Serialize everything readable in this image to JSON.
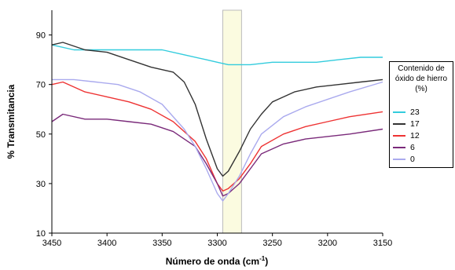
{
  "chart_data": {
    "type": "line",
    "title": "",
    "xlabel": "Número de onda (cm",
    "xlabel_sup": "-1",
    "xlabel_close": ")",
    "ylabel": "% Transmitancia",
    "xlim": [
      3450,
      3150
    ],
    "ylim": [
      10,
      100
    ],
    "x_ticks": [
      "3450",
      "3400",
      "3350",
      "3300",
      "3250",
      "3200",
      "3150"
    ],
    "y_ticks": [
      "90",
      "70",
      "50",
      "30",
      "10"
    ],
    "highlight_band": [
      3295,
      3278
    ],
    "highlight_color": "#fbfbe0",
    "legend_title": [
      "Contenido de",
      "óxido de hierro",
      "(%)"
    ],
    "series": [
      {
        "name": "23",
        "color": "#33ccdd",
        "x": [
          3450,
          3430,
          3410,
          3390,
          3370,
          3350,
          3330,
          3310,
          3300,
          3290,
          3280,
          3270,
          3250,
          3230,
          3210,
          3190,
          3170,
          3150
        ],
        "y": [
          86,
          84,
          84,
          84,
          84,
          84,
          82,
          80,
          79,
          78,
          78,
          78,
          79,
          79,
          79,
          80,
          81,
          81
        ]
      },
      {
        "name": "17",
        "color": "#333333",
        "x": [
          3450,
          3440,
          3420,
          3400,
          3380,
          3360,
          3340,
          3330,
          3320,
          3310,
          3300,
          3295,
          3290,
          3280,
          3270,
          3260,
          3250,
          3230,
          3210,
          3190,
          3170,
          3150
        ],
        "y": [
          86,
          87,
          84,
          83,
          80,
          77,
          75,
          71,
          62,
          48,
          36,
          33,
          35,
          43,
          52,
          58,
          63,
          67,
          69,
          70,
          71,
          72
        ]
      },
      {
        "name": "12",
        "color": "#ee3333",
        "x": [
          3450,
          3440,
          3420,
          3400,
          3380,
          3360,
          3340,
          3320,
          3310,
          3300,
          3295,
          3290,
          3280,
          3270,
          3260,
          3240,
          3220,
          3200,
          3180,
          3150
        ],
        "y": [
          70,
          71,
          67,
          65,
          63,
          60,
          55,
          47,
          40,
          30,
          27,
          28,
          32,
          38,
          45,
          50,
          53,
          55,
          57,
          59
        ]
      },
      {
        "name": "6",
        "color": "#7a2a7a",
        "x": [
          3450,
          3440,
          3420,
          3400,
          3380,
          3360,
          3340,
          3320,
          3310,
          3300,
          3295,
          3290,
          3280,
          3270,
          3260,
          3240,
          3220,
          3200,
          3180,
          3150
        ],
        "y": [
          55,
          58,
          56,
          56,
          55,
          54,
          51,
          45,
          38,
          30,
          25,
          26,
          30,
          36,
          42,
          46,
          48,
          49,
          50,
          52
        ]
      },
      {
        "name": "0",
        "color": "#aaaaee",
        "x": [
          3450,
          3430,
          3410,
          3390,
          3370,
          3350,
          3330,
          3320,
          3310,
          3300,
          3295,
          3290,
          3280,
          3270,
          3260,
          3240,
          3220,
          3200,
          3180,
          3150
        ],
        "y": [
          72,
          72,
          71,
          70,
          67,
          62,
          52,
          45,
          36,
          26,
          23,
          26,
          33,
          42,
          50,
          57,
          61,
          64,
          67,
          71
        ]
      }
    ]
  }
}
